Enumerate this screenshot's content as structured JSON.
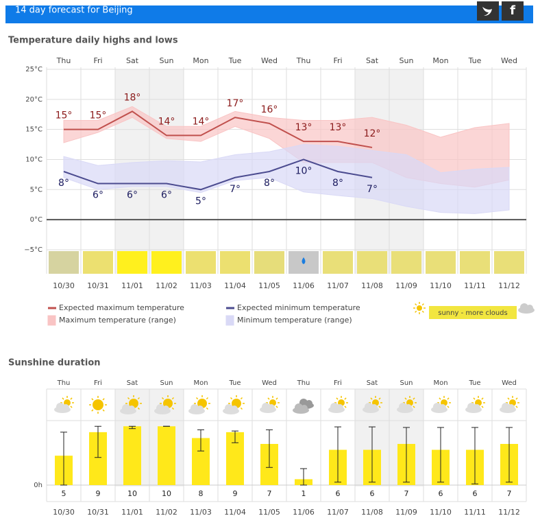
{
  "header": {
    "title": "14 day forecast for Beijing"
  },
  "chart_data": [
    {
      "type": "line-range",
      "title": "Temperature daily highs and lows",
      "categories": [
        "Thu",
        "Fri",
        "Sat",
        "Sun",
        "Mon",
        "Tue",
        "Wed",
        "Thu",
        "Fri",
        "Sat",
        "Sun",
        "Mon",
        "Tue",
        "Wed"
      ],
      "dates": [
        "10/30",
        "10/31",
        "11/01",
        "11/02",
        "11/03",
        "11/04",
        "11/05",
        "11/06",
        "11/07",
        "11/08",
        "11/09",
        "11/10",
        "11/11",
        "11/12"
      ],
      "ylim": [
        -9,
        25
      ],
      "yticks": [
        {
          "value": 25,
          "label": "25°C"
        },
        {
          "value": 20,
          "label": "20°C"
        },
        {
          "value": 15,
          "label": "15°C"
        },
        {
          "value": 10,
          "label": "10°C"
        },
        {
          "value": 5,
          "label": "5°C"
        },
        {
          "value": 0,
          "label": "0°C"
        },
        {
          "value": -5,
          "label": "−5°C"
        }
      ],
      "grid": true,
      "series": [
        {
          "name": "Expected maximum temperature",
          "color": "#c0504d",
          "label_color": "#8b1a1a",
          "values": [
            15,
            15,
            18,
            14,
            14,
            17,
            16,
            13,
            13,
            12,
            null,
            null,
            null,
            null
          ],
          "value_labels": [
            "15°",
            "15°",
            "18°",
            "14°",
            "14°",
            "17°",
            "16°",
            "13°",
            "13°",
            "12°",
            null,
            null,
            null,
            null
          ]
        },
        {
          "name": "Maximum temperature (range)",
          "color": "#f9c4c4",
          "high": [
            16.5,
            16.5,
            18.8,
            15.5,
            15.5,
            18,
            17,
            16.5,
            16.5,
            17,
            15.7,
            13.7,
            15.3,
            16
          ],
          "low": [
            12.8,
            14.5,
            17,
            13.5,
            13,
            15.5,
            13.5,
            9.5,
            9.5,
            9.5,
            7,
            6,
            5.4,
            6.6
          ]
        },
        {
          "name": "Expected minimum temperature",
          "color": "#4b4b8f",
          "label_color": "#1a1a5e",
          "values": [
            8,
            6,
            6,
            6,
            5,
            7,
            8,
            10,
            8,
            7,
            null,
            null,
            null,
            null
          ],
          "value_labels": [
            "8°",
            "6°",
            "6°",
            "6°",
            "5°",
            "7°",
            "8°",
            "10°",
            "8°",
            "7°",
            null,
            null,
            null,
            null
          ]
        },
        {
          "name": "Minimum temperature (range)",
          "color": "#d9d9f6",
          "high": [
            10.5,
            9,
            9.5,
            9.8,
            9.6,
            10.8,
            11.3,
            12.5,
            12.2,
            11.5,
            10.8,
            7.8,
            8.4,
            8.7
          ],
          "low": [
            7,
            5,
            5.5,
            5.5,
            4.5,
            6.5,
            7,
            4.6,
            4,
            3.5,
            2.2,
            1.2,
            1,
            1.6
          ]
        }
      ],
      "weather_label": "sunny - more clouds"
    },
    {
      "type": "bar",
      "title": "Sunshine duration",
      "categories": [
        "Thu",
        "Fri",
        "Sat",
        "Sun",
        "Mon",
        "Tue",
        "Wed",
        "Thu",
        "Fri",
        "Sat",
        "Sun",
        "Mon",
        "Tue",
        "Wed"
      ],
      "dates": [
        "10/30",
        "10/31",
        "11/01",
        "11/02",
        "11/03",
        "11/04",
        "11/05",
        "11/06",
        "11/07",
        "11/08",
        "11/09",
        "11/10",
        "11/11",
        "11/12"
      ],
      "ylim": [
        0,
        10.5
      ],
      "yticks": [
        {
          "value": 0,
          "label": "0h"
        }
      ],
      "color": "#ffe81a",
      "values": [
        5,
        9,
        10,
        10,
        8,
        9,
        7,
        1,
        6,
        6,
        7,
        6,
        6,
        7
      ],
      "low": [
        0,
        4.7,
        9.6,
        10,
        5.8,
        7.2,
        3,
        0,
        0.5,
        0.5,
        0.5,
        0.5,
        0.2,
        0.5
      ],
      "high": [
        9,
        10,
        10,
        10,
        9.4,
        9.2,
        9.4,
        2.8,
        9.9,
        9.9,
        9.8,
        9.8,
        9.8,
        9.8
      ]
    }
  ]
}
